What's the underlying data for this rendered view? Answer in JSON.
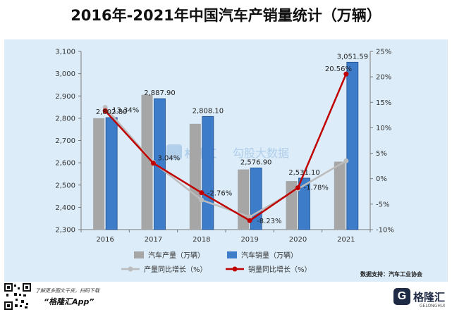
{
  "title": "2016年-2021年中国汽车产销量统计（万辆）",
  "source": "数据支持：汽车工业协会",
  "watermark": {
    "brand": "格隆汇",
    "text": "勾股大数据"
  },
  "footer": {
    "line1": "了解更多图文干货，扫码下载",
    "line2": "“格隆汇App”",
    "logo_text": "格隆汇",
    "logo_sub": "GELONGHUI"
  },
  "colors": {
    "production_bar": "#a6a6a6",
    "sales_bar": "#3d7cc9",
    "production_growth_line": "#bcbcbc",
    "sales_growth_line": "#c00000",
    "background": "#dcecf8"
  },
  "chart_data": {
    "type": "bar",
    "title": "2016年-2021年中国汽车产销量统计（万辆）",
    "categories": [
      "2016",
      "2017",
      "2018",
      "2019",
      "2020",
      "2021"
    ],
    "y_left": {
      "min": 2300,
      "max": 3100,
      "step": 100,
      "ticks": [
        "2,300",
        "2,400",
        "2,500",
        "2,600",
        "2,700",
        "2,800",
        "2,900",
        "3,000",
        "3,100"
      ]
    },
    "y_right": {
      "min": -10,
      "max": 25,
      "step": 5,
      "ticks": [
        "-10%",
        "-5%",
        "0%",
        "5%",
        "10%",
        "15%",
        "20%",
        "25%"
      ]
    },
    "series": [
      {
        "name": "汽车产量（万辆）",
        "type": "bar",
        "axis": "left",
        "values": [
          2800,
          2905,
          2775,
          2570,
          2518,
          2605
        ]
      },
      {
        "name": "汽车销量（万辆）",
        "type": "bar",
        "axis": "left",
        "values": [
          2802.8,
          2887.9,
          2808.1,
          2576.9,
          2531.1,
          3051.59
        ],
        "labels": [
          "2,802.80",
          "2,887.90",
          "2,808.10",
          "2,576.90",
          "2,531.10",
          "3,051.59"
        ]
      },
      {
        "name": "产量同比增长（%）",
        "type": "line",
        "axis": "right",
        "values": [
          14.0,
          3.2,
          -4.2,
          -7.5,
          -2.0,
          3.5
        ]
      },
      {
        "name": "销量同比增长（%）",
        "type": "line",
        "axis": "right",
        "values": [
          13.34,
          3.04,
          -2.76,
          -8.23,
          -1.78,
          20.56
        ],
        "labels": [
          "13.34%",
          "3.04%",
          "-2.76%",
          "-8.23%",
          "-1.78%",
          "20.56%"
        ]
      }
    ],
    "legend": [
      "汽车产量（万辆）",
      "汽车销量（万辆）",
      "产量同比增长（%）",
      "销量同比增长（%）"
    ],
    "legend_position": "bottom"
  }
}
